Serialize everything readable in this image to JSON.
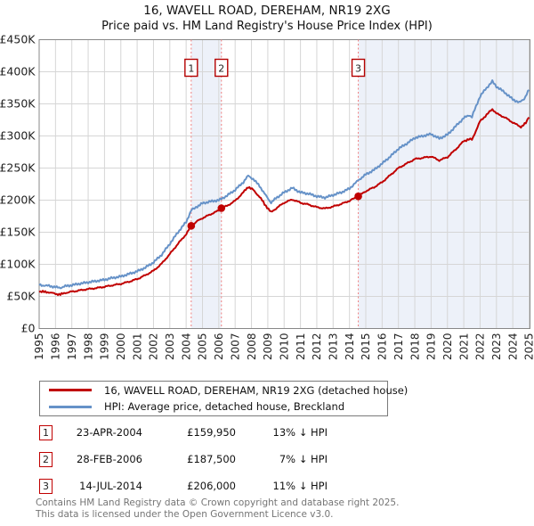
{
  "chart_data": {
    "type": "line",
    "title": "16, WAVELL ROAD, DEREHAM, NR19 2XG",
    "subtitle": "Price paid vs. HM Land Registry's House Price Index (HPI)",
    "ylim": [
      0,
      450000
    ],
    "ytick_labels": [
      "£0",
      "£50K",
      "£100K",
      "£150K",
      "£200K",
      "£250K",
      "£300K",
      "£350K",
      "£400K",
      "£450K"
    ],
    "xticks": [
      1995,
      1996,
      1997,
      1998,
      1999,
      2000,
      2001,
      2002,
      2003,
      2004,
      2005,
      2006,
      2007,
      2008,
      2009,
      2010,
      2011,
      2012,
      2013,
      2014,
      2015,
      2016,
      2017,
      2018,
      2019,
      2020,
      2021,
      2022,
      2023,
      2024,
      2025
    ],
    "grid": true,
    "legend_position": "bottom",
    "colors": {
      "property_line": "#c00000",
      "hpi_line": "#6692c8",
      "marker_dashed_line": "#f08080",
      "marker_box_border": "#b40000",
      "shaded_band": "#edf1f9",
      "gridline": "#d6d6d6",
      "plot_border": "#888888"
    },
    "series": [
      {
        "name": "16, WAVELL ROAD, DEREHAM, NR19 2XG (detached house)",
        "color": "#c00000",
        "points_year_priceK": [
          [
            1995.0,
            58
          ],
          [
            1995.3,
            57
          ],
          [
            1995.6,
            56.5
          ],
          [
            1996.0,
            54
          ],
          [
            1996.3,
            53
          ],
          [
            1996.6,
            55.5
          ],
          [
            1997.0,
            57.5
          ],
          [
            1997.5,
            59.5
          ],
          [
            1998.0,
            61.5
          ],
          [
            1998.5,
            63
          ],
          [
            1999.0,
            65
          ],
          [
            1999.5,
            67.5
          ],
          [
            2000.0,
            69.5
          ],
          [
            2000.5,
            73
          ],
          [
            2001.0,
            77
          ],
          [
            2001.5,
            83
          ],
          [
            2002.0,
            90
          ],
          [
            2002.5,
            101
          ],
          [
            2003.0,
            116
          ],
          [
            2003.5,
            132
          ],
          [
            2004.0,
            147
          ],
          [
            2004.31,
            159.95
          ],
          [
            2004.6,
            166
          ],
          [
            2005.0,
            172
          ],
          [
            2005.5,
            178
          ],
          [
            2006.0,
            184
          ],
          [
            2006.16,
            187.5
          ],
          [
            2006.5,
            191
          ],
          [
            2007.0,
            199
          ],
          [
            2007.5,
            212
          ],
          [
            2007.8,
            221
          ],
          [
            2008.1,
            216
          ],
          [
            2008.5,
            205
          ],
          [
            2008.8,
            194
          ],
          [
            2009.2,
            181
          ],
          [
            2009.5,
            187
          ],
          [
            2010.0,
            196
          ],
          [
            2010.5,
            201
          ],
          [
            2011.0,
            196
          ],
          [
            2011.5,
            193
          ],
          [
            2012.0,
            189
          ],
          [
            2012.5,
            187
          ],
          [
            2013.0,
            190
          ],
          [
            2013.5,
            194
          ],
          [
            2014.0,
            199
          ],
          [
            2014.54,
            206
          ],
          [
            2015.0,
            214
          ],
          [
            2015.5,
            220
          ],
          [
            2016.0,
            228
          ],
          [
            2016.5,
            239
          ],
          [
            2017.0,
            250
          ],
          [
            2017.5,
            257
          ],
          [
            2018.0,
            264
          ],
          [
            2018.5,
            266
          ],
          [
            2019.0,
            268
          ],
          [
            2019.5,
            262
          ],
          [
            2020.0,
            267
          ],
          [
            2020.5,
            279
          ],
          [
            2021.0,
            292
          ],
          [
            2021.3,
            295
          ],
          [
            2021.5,
            294
          ],
          [
            2022.0,
            323
          ],
          [
            2022.4,
            333
          ],
          [
            2022.75,
            342
          ],
          [
            2023.0,
            335
          ],
          [
            2023.5,
            329
          ],
          [
            2024.0,
            321
          ],
          [
            2024.5,
            314
          ],
          [
            2024.8,
            320
          ],
          [
            2025.0,
            330
          ]
        ]
      },
      {
        "name": "HPI: Average price, detached house, Breckland",
        "color": "#6692c8",
        "points_year_priceK": [
          [
            1995.0,
            68
          ],
          [
            1995.3,
            67
          ],
          [
            1995.6,
            66.5
          ],
          [
            1996.0,
            64.5
          ],
          [
            1996.3,
            63.5
          ],
          [
            1996.6,
            66
          ],
          [
            1997.0,
            67.5
          ],
          [
            1997.5,
            70
          ],
          [
            1998.0,
            72
          ],
          [
            1998.5,
            74
          ],
          [
            1999.0,
            76
          ],
          [
            1999.5,
            79
          ],
          [
            2000.0,
            81
          ],
          [
            2000.5,
            85
          ],
          [
            2001.0,
            89
          ],
          [
            2001.5,
            95
          ],
          [
            2002.0,
            103
          ],
          [
            2002.5,
            115
          ],
          [
            2003.0,
            132
          ],
          [
            2003.5,
            150
          ],
          [
            2004.0,
            166
          ],
          [
            2004.31,
            184
          ],
          [
            2004.6,
            189
          ],
          [
            2005.0,
            195
          ],
          [
            2005.5,
            198
          ],
          [
            2006.0,
            200
          ],
          [
            2006.16,
            202
          ],
          [
            2006.5,
            207
          ],
          [
            2007.0,
            216
          ],
          [
            2007.5,
            228
          ],
          [
            2007.8,
            238
          ],
          [
            2008.1,
            233
          ],
          [
            2008.5,
            222
          ],
          [
            2008.8,
            210
          ],
          [
            2009.2,
            196
          ],
          [
            2009.5,
            203
          ],
          [
            2010.0,
            212
          ],
          [
            2010.5,
            219
          ],
          [
            2011.0,
            212
          ],
          [
            2011.5,
            210
          ],
          [
            2012.0,
            206
          ],
          [
            2012.5,
            204
          ],
          [
            2013.0,
            208
          ],
          [
            2013.5,
            212
          ],
          [
            2014.0,
            218
          ],
          [
            2014.54,
            231
          ],
          [
            2015.0,
            240
          ],
          [
            2015.5,
            247
          ],
          [
            2016.0,
            257
          ],
          [
            2016.5,
            268
          ],
          [
            2017.0,
            280
          ],
          [
            2017.5,
            288
          ],
          [
            2018.0,
            297
          ],
          [
            2018.5,
            300
          ],
          [
            2019.0,
            303
          ],
          [
            2019.5,
            296
          ],
          [
            2020.0,
            302
          ],
          [
            2020.5,
            315
          ],
          [
            2021.0,
            328
          ],
          [
            2021.3,
            332
          ],
          [
            2021.5,
            330
          ],
          [
            2022.0,
            362
          ],
          [
            2022.4,
            375
          ],
          [
            2022.75,
            385
          ],
          [
            2023.0,
            377
          ],
          [
            2023.5,
            368
          ],
          [
            2024.0,
            357
          ],
          [
            2024.4,
            352
          ],
          [
            2024.7,
            358
          ],
          [
            2025.0,
            372
          ]
        ]
      }
    ],
    "sale_markers": [
      {
        "label": "1",
        "year": 2004.31,
        "price_k": 159.95
      },
      {
        "label": "2",
        "year": 2006.16,
        "price_k": 187.5
      },
      {
        "label": "3",
        "year": 2014.54,
        "price_k": 206
      }
    ],
    "shaded_bands_years": [
      [
        2004.31,
        2006.16
      ],
      [
        2014.54,
        2025.06
      ]
    ]
  },
  "legend": {
    "entries": [
      {
        "label": "16, WAVELL ROAD, DEREHAM, NR19 2XG (detached house)",
        "color": "#c00000"
      },
      {
        "label": "HPI: Average price, detached house, Breckland",
        "color": "#6692c8"
      }
    ]
  },
  "transactions": [
    {
      "num": "1",
      "date": "23-APR-2004",
      "price": "£159,950",
      "vs_hpi": "13% ↓ HPI"
    },
    {
      "num": "2",
      "date": "28-FEB-2006",
      "price": "£187,500",
      "vs_hpi": "7% ↓ HPI"
    },
    {
      "num": "3",
      "date": "14-JUL-2014",
      "price": "£206,000",
      "vs_hpi": "11% ↓ HPI"
    }
  ],
  "footer": {
    "line1": "Contains HM Land Registry data © Crown copyright and database right 2025.",
    "line2": "This data is licensed under the Open Government Licence v3.0."
  }
}
